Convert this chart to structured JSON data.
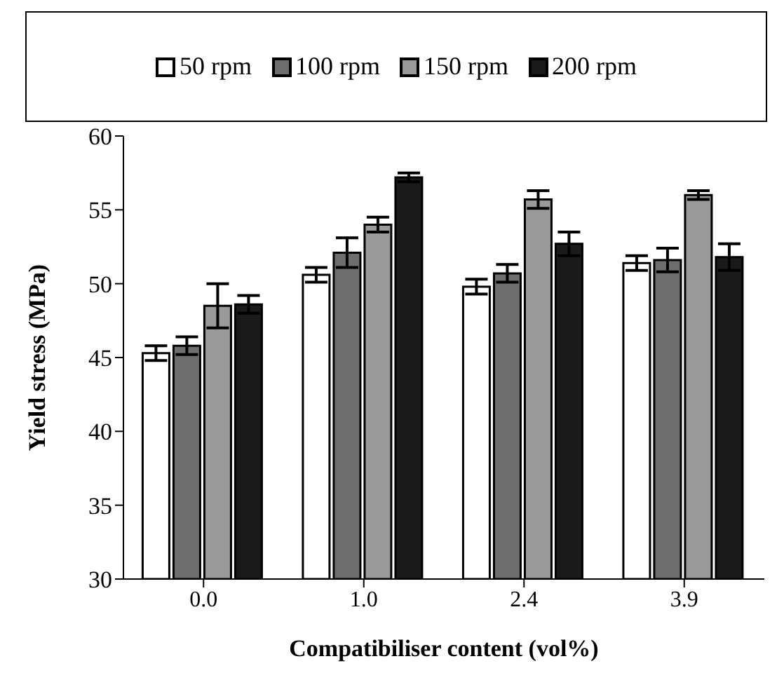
{
  "chart_data": {
    "type": "bar",
    "xlabel": "Compatibiliser content (vol%)",
    "ylabel": "Yield stress (MPa)",
    "categories": [
      "0.0",
      "1.0",
      "2.4",
      "3.9"
    ],
    "series": [
      {
        "name": "50 rpm",
        "color": "#ffffff",
        "values": [
          45.3,
          50.6,
          49.8,
          51.4
        ],
        "errors": [
          0.5,
          0.5,
          0.5,
          0.5
        ]
      },
      {
        "name": "100 rpm",
        "color": "#6e6e6e",
        "values": [
          45.8,
          52.1,
          50.7,
          51.6
        ],
        "errors": [
          0.6,
          1.0,
          0.6,
          0.8
        ]
      },
      {
        "name": "150 rpm",
        "color": "#9a9a9a",
        "values": [
          48.5,
          54.0,
          55.7,
          56.0
        ],
        "errors": [
          1.5,
          0.5,
          0.6,
          0.3
        ]
      },
      {
        "name": "200 rpm",
        "color": "#1a1a1a",
        "values": [
          48.6,
          57.2,
          52.7,
          51.8
        ],
        "errors": [
          0.6,
          0.3,
          0.8,
          0.9
        ]
      }
    ],
    "ylim": [
      30,
      60
    ],
    "yticks": [
      30,
      35,
      40,
      45,
      50,
      55,
      60
    ],
    "grid": false,
    "legend": "top"
  }
}
